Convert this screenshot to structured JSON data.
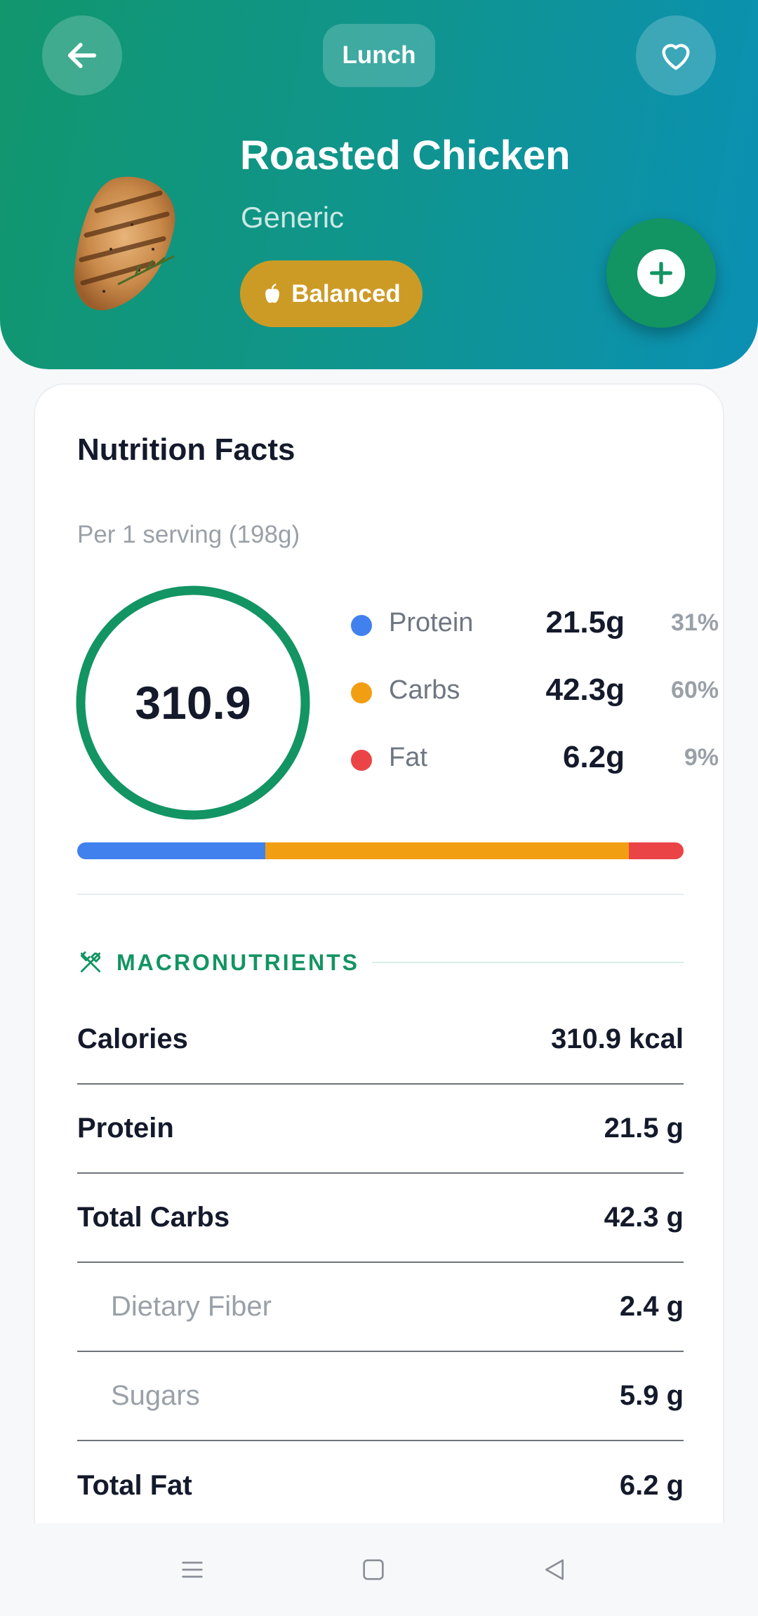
{
  "header": {
    "meal": "Lunch",
    "food_name": "Roasted Chicken",
    "brand": "Generic",
    "badge": "Balanced",
    "gradient_start": "#11966e",
    "gradient_end": "#0b90b4"
  },
  "nutrition": {
    "title": "Nutrition Facts",
    "serving": "Per 1 serving (198g)",
    "calories_display": "310.9",
    "ring_color": "#139463",
    "macros": [
      {
        "name": "Protein",
        "amount": "21.5g",
        "percent": "31%",
        "fraction": 31,
        "color": "#4181ee"
      },
      {
        "name": "Carbs",
        "amount": "42.3g",
        "percent": "60%",
        "fraction": 60,
        "color": "#f29e13"
      },
      {
        "name": "Fat",
        "amount": "6.2g",
        "percent": "9%",
        "fraction": 9,
        "color": "#ea4446"
      }
    ]
  },
  "macronutrients": {
    "section_title": "MACRONUTRIENTS",
    "rows": [
      {
        "label": "Calories",
        "value": "310.9 kcal"
      },
      {
        "label": "Protein",
        "value": "21.5 g"
      },
      {
        "label": "Total Carbs",
        "value": "42.3 g"
      },
      {
        "label": "Dietary Fiber",
        "value": "2.4 g"
      },
      {
        "label": "Sugars",
        "value": "5.9 g"
      },
      {
        "label": "Total Fat",
        "value": "6.2 g"
      }
    ]
  },
  "icons": {
    "back": "arrow-left-icon",
    "favorite": "heart-icon",
    "add": "plus-icon",
    "badge": "apple-icon",
    "section": "utensils-icon",
    "nav_menu": "menu-icon",
    "nav_home": "square-icon",
    "nav_back": "triangle-back-icon"
  }
}
